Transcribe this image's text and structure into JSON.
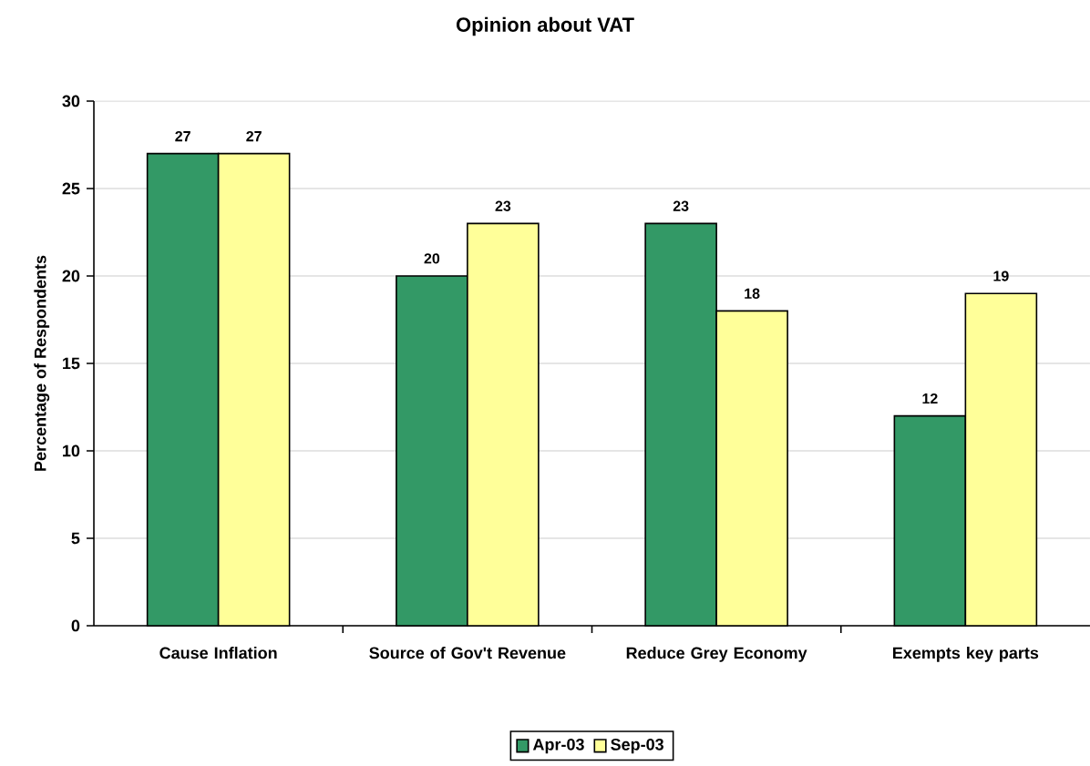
{
  "chart_data": {
    "type": "bar",
    "title": "Opinion about VAT",
    "ylabel": "Percentage of Respondents",
    "categories": [
      "Cause Inflation",
      "Source of Gov't Revenue",
      "Reduce Grey Economy",
      "Exempts key parts"
    ],
    "series": [
      {
        "name": "Apr-03",
        "color": "#339966",
        "values": [
          27,
          20,
          23,
          12
        ]
      },
      {
        "name": "Sep-03",
        "color": "#ffff99",
        "values": [
          27,
          23,
          18,
          19
        ]
      }
    ],
    "ylim": [
      0,
      30
    ],
    "yticks": [
      0,
      5,
      10,
      15,
      20,
      25,
      30
    ],
    "grid": "y",
    "legend": "bottom",
    "data_labels": true
  }
}
